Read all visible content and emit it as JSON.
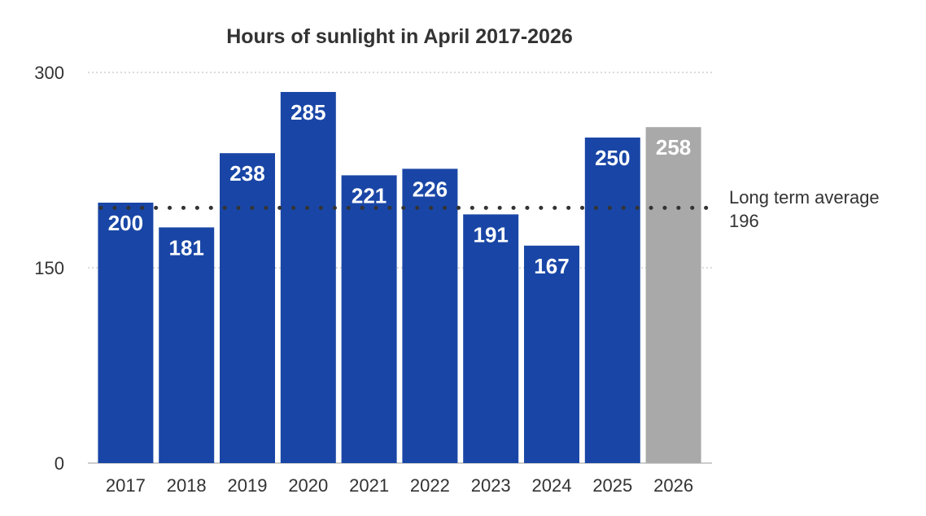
{
  "chart_data": {
    "type": "bar",
    "title": "Hours of sunlight in April 2017-2026",
    "xlabel": "",
    "ylabel": "",
    "ylim": [
      0,
      300
    ],
    "yticks": [
      "0",
      "150",
      "300"
    ],
    "grid": true,
    "categories": [
      "2017",
      "2018",
      "2019",
      "2020",
      "2021",
      "2022",
      "2023",
      "2024",
      "2025",
      "2026"
    ],
    "values": [
      200,
      181,
      238,
      285,
      221,
      226,
      191,
      167,
      250,
      258
    ],
    "value_labels": [
      "200",
      "181",
      "238",
      "285",
      "221",
      "226",
      "191",
      "167",
      "250",
      "258"
    ],
    "highlight_index": 9,
    "reference_line": {
      "value": 196,
      "label": "Long term average",
      "value_label": "196"
    }
  },
  "colors": {
    "bar": "#1946a6",
    "bar_highlight": "#a9a9a9",
    "grid": "#bbbbbb",
    "axis": "#999999",
    "avg_dots": "#333333"
  }
}
